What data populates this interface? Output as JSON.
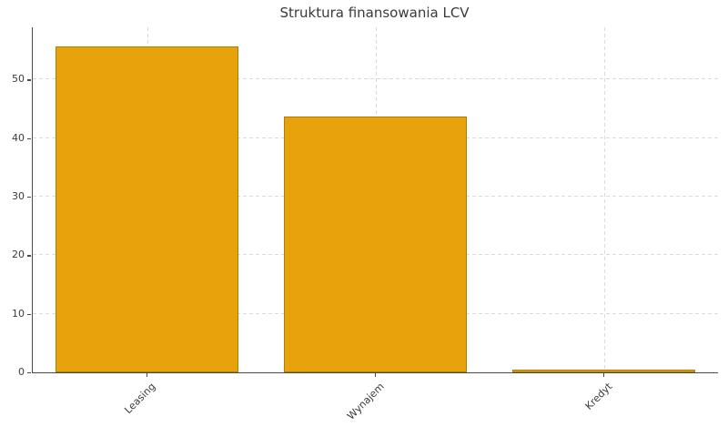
{
  "chart_data": {
    "type": "bar",
    "title": "Struktura finansowania LCV",
    "categories": [
      "Leasing",
      "Wynajem",
      "Kredyt"
    ],
    "values": [
      55.7,
      43.7,
      0.5
    ],
    "xlabel": "",
    "ylabel": "",
    "ylim": [
      0,
      58.9
    ],
    "yticks": [
      0,
      10,
      20,
      30,
      40,
      50
    ],
    "xtick_rotation_deg": 45,
    "grid": {
      "horizontal": true,
      "vertical": true,
      "style": "dashed"
    },
    "legend": {
      "visible": false
    },
    "bar_width_fraction": 0.8,
    "colors": {
      "bar_fill": "#E8A20C",
      "bar_edge": "#AE7A08",
      "grid": "#DADADA",
      "axis": "#4A4A4A",
      "text": "#3B3B3B",
      "background": "#FFFFFF"
    }
  }
}
